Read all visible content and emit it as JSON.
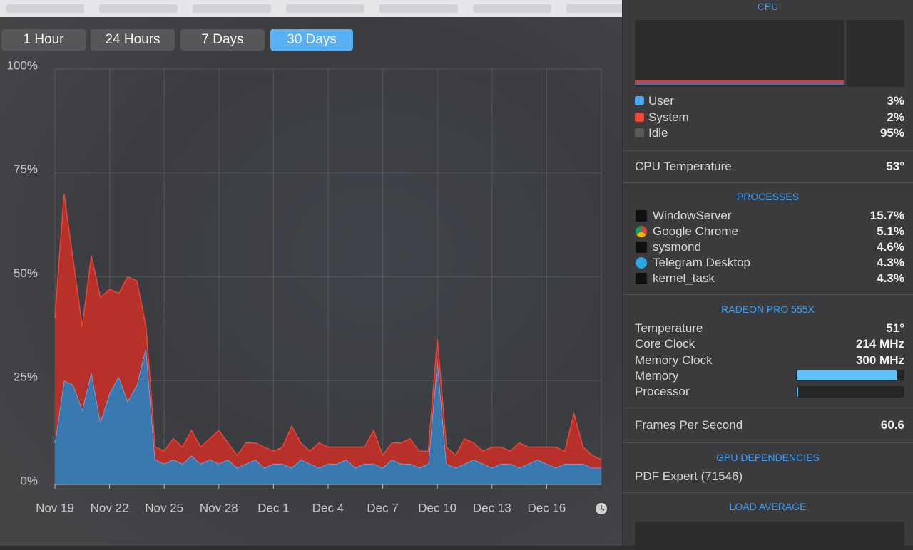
{
  "toolbar": {
    "tabs": [
      "1 Hour",
      "24 Hours",
      "7 Days",
      "30 Days"
    ],
    "active": 3
  },
  "chart_data": {
    "type": "stacked-area",
    "x": [
      0,
      0.5,
      1,
      1.5,
      2,
      2.5,
      3,
      3.5,
      4,
      4.5,
      5,
      5.5,
      6,
      6.5,
      7,
      7.5,
      8,
      8.5,
      9,
      9.5,
      10,
      10.5,
      11,
      11.5,
      12,
      12.5,
      13,
      13.5,
      14,
      14.5,
      15,
      15.5,
      16,
      16.5,
      17,
      17.5,
      18,
      18.5,
      19,
      19.5,
      20,
      20.5,
      21,
      21.5,
      22,
      22.5,
      23,
      23.5,
      24,
      24.5,
      25,
      25.5,
      26,
      26.5,
      27,
      27.5,
      28,
      28.5,
      29,
      29.5,
      30
    ],
    "series": [
      {
        "name": "User",
        "color": "#3a78b0",
        "line": "#6cb6f2",
        "values": [
          10,
          25,
          24,
          18,
          27,
          15,
          22,
          26,
          20,
          24,
          33,
          6,
          5,
          6,
          5,
          7,
          5,
          6,
          5,
          6,
          4,
          5,
          6,
          4,
          5,
          5,
          4,
          6,
          5,
          4,
          5,
          5,
          6,
          4,
          5,
          5,
          4,
          6,
          5,
          5,
          4,
          5,
          30,
          5,
          4,
          5,
          6,
          5,
          4,
          5,
          5,
          4,
          5,
          6,
          5,
          4,
          5,
          5,
          5,
          4,
          4
        ]
      },
      {
        "name": "System",
        "color": "#b8302a",
        "line": "#ea4639",
        "values": [
          30,
          45,
          30,
          20,
          28,
          30,
          25,
          20,
          30,
          25,
          5,
          3,
          3,
          5,
          4,
          6,
          4,
          5,
          8,
          4,
          3,
          5,
          4,
          5,
          3,
          4,
          10,
          4,
          3,
          6,
          4,
          4,
          3,
          5,
          4,
          8,
          3,
          4,
          5,
          6,
          4,
          3,
          5,
          4,
          3,
          6,
          4,
          3,
          5,
          4,
          3,
          6,
          4,
          3,
          4,
          5,
          3,
          12,
          4,
          3,
          2
        ]
      }
    ],
    "xlim": [
      0,
      30
    ],
    "xticks": [
      {
        "value": 0,
        "label": "Nov 19"
      },
      {
        "value": 3,
        "label": "Nov 22"
      },
      {
        "value": 6,
        "label": "Nov 25"
      },
      {
        "value": 9,
        "label": "Nov 28"
      },
      {
        "value": 12,
        "label": "Dec 1"
      },
      {
        "value": 15,
        "label": "Dec 4"
      },
      {
        "value": 18,
        "label": "Dec 7"
      },
      {
        "value": 21,
        "label": "Dec 10"
      },
      {
        "value": 24,
        "label": "Dec 13"
      },
      {
        "value": 27,
        "label": "Dec 16"
      }
    ],
    "ylim": [
      0,
      100
    ],
    "yticks": [
      {
        "value": 0,
        "label": "0%"
      },
      {
        "value": 25,
        "label": "25%"
      },
      {
        "value": 50,
        "label": "50%"
      },
      {
        "value": 75,
        "label": "75%"
      },
      {
        "value": 100,
        "label": "100%"
      }
    ],
    "grid": true
  },
  "sidebar": {
    "cpu": {
      "title": "CPU",
      "rows": [
        {
          "label": "User",
          "value": "3%"
        },
        {
          "label": "System",
          "value": "2%"
        },
        {
          "label": "Idle",
          "value": "95%"
        }
      ]
    },
    "cpu_temperature": {
      "label": "CPU Temperature",
      "value": "53°"
    },
    "processes": {
      "title": "PROCESSES",
      "items": [
        {
          "name": "WindowServer",
          "value": "15.7%"
        },
        {
          "name": "Google Chrome",
          "value": "5.1%"
        },
        {
          "name": "sysmond",
          "value": "4.6%"
        },
        {
          "name": "Telegram Desktop",
          "value": "4.3%"
        },
        {
          "name": "kernel_task",
          "value": "4.3%"
        }
      ]
    },
    "gpu": {
      "title": "RADEON PRO 555X",
      "rows": [
        {
          "label": "Temperature",
          "value": "51°"
        },
        {
          "label": "Core Clock",
          "value": "214 MHz"
        },
        {
          "label": "Memory Clock",
          "value": "300 MHz"
        }
      ],
      "memory_label": "Memory",
      "memory_fill": 94,
      "processor_label": "Processor",
      "processor_fill": 1
    },
    "fps": {
      "label": "Frames Per Second",
      "value": "60.6"
    },
    "gpu_dependencies": {
      "title": "GPU DEPENDENCIES",
      "items": [
        "PDF Expert (71546)"
      ]
    },
    "load_average": {
      "title": "LOAD AVERAGE"
    }
  }
}
